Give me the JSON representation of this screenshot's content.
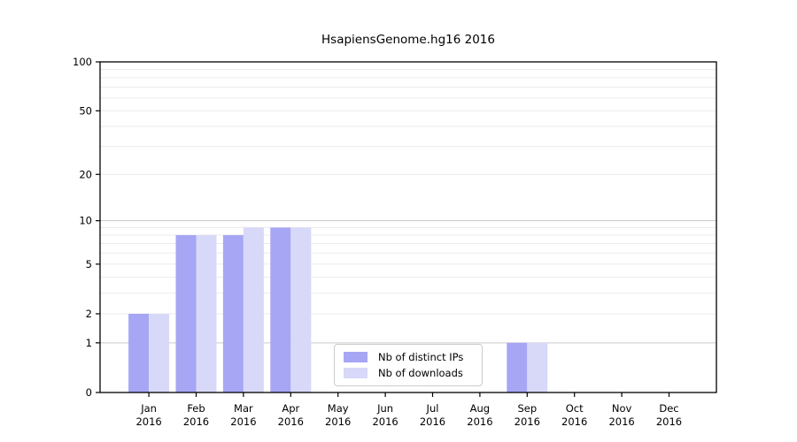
{
  "title": "HsapiensGenome.hg16 2016",
  "chart_data": {
    "type": "bar",
    "title": "HsapiensGenome.hg16 2016",
    "categories": [
      "Jan",
      "Feb",
      "Mar",
      "Apr",
      "May",
      "Jun",
      "Jul",
      "Aug",
      "Sep",
      "Oct",
      "Nov",
      "Dec"
    ],
    "category_year": "2016",
    "series": [
      {
        "name": "Nb of distinct IPs",
        "color": "#a6a6f5",
        "values": [
          2,
          8,
          8,
          9,
          0,
          0,
          0,
          0,
          1,
          0,
          0,
          0
        ]
      },
      {
        "name": "Nb of downloads",
        "color": "#d8d8f8",
        "values": [
          2,
          8,
          9,
          9,
          0,
          0,
          0,
          0,
          1,
          0,
          0,
          0
        ]
      }
    ],
    "yscale": "log1p",
    "ylim": [
      0,
      100
    ],
    "yticks": [
      0,
      1,
      2,
      5,
      10,
      20,
      50,
      100
    ],
    "minor_gridlines": [
      2,
      3,
      4,
      5,
      6,
      7,
      8,
      9,
      20,
      30,
      40,
      50,
      60,
      70,
      80,
      90
    ],
    "major_gridlines": [
      1,
      10,
      100
    ],
    "grid": true,
    "legend_position": "lower center, inside axes",
    "colors": {
      "axis_frame": "#000000",
      "major_grid": "#c9c9c9",
      "minor_grid": "#ebebeb",
      "text": "#000000",
      "background": "#ffffff"
    }
  }
}
